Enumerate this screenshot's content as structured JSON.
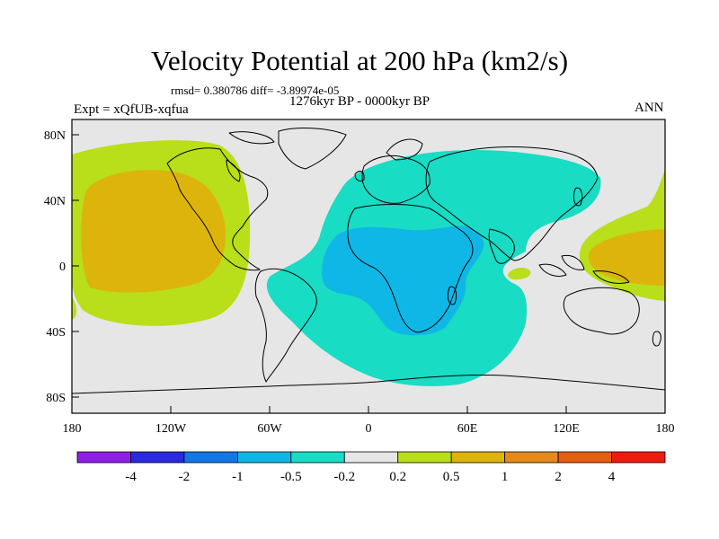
{
  "title": "Velocity Potential at 200 hPa (km2/s)",
  "stats": "rmsd= 0.380786 diff= -3.89974e-05",
  "subtitle": "1276kyr BP - 0000kyr BP",
  "experiment": "Expt = xQfUB-xqfua",
  "season": "ANN",
  "map": {
    "lon_range": [
      -180,
      180
    ],
    "lat_range": [
      -90,
      90
    ],
    "y_ticks": [
      "80N",
      "40N",
      "0",
      "40S",
      "80S"
    ],
    "x_ticks": [
      "180",
      "120W",
      "60W",
      "0",
      "60E",
      "120E",
      "180"
    ]
  },
  "colorbar": {
    "colors": [
      "#8f1fe6",
      "#2a2ae0",
      "#1477e6",
      "#0fb7e6",
      "#18dcc4",
      "#e6e6e6",
      "#b9de1a",
      "#ddb40c",
      "#e58a18",
      "#e55e0e",
      "#ee1c0e"
    ],
    "labels": [
      "-4",
      "-2",
      "-1",
      "-0.5",
      "-0.2",
      "0.2",
      "0.5",
      "1",
      "2",
      "4"
    ]
  },
  "colors": {
    "background": "#e6e6e6",
    "neg_02_05": "#18dcc4",
    "neg_05_1": "#0fb7e6",
    "pos_02_05": "#b9de1a",
    "pos_05_1": "#ddb40c"
  }
}
